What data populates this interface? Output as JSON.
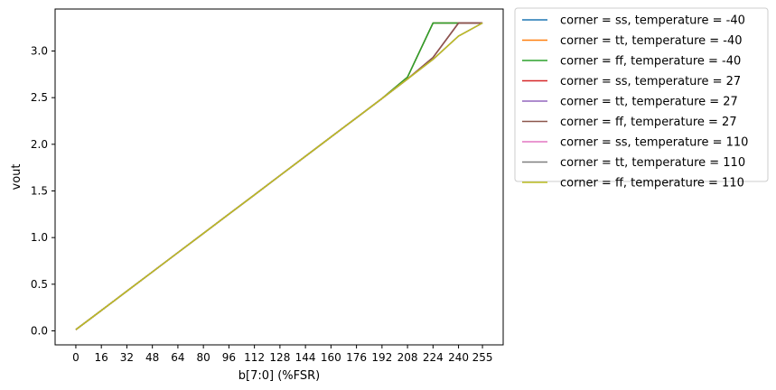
{
  "chart_data": {
    "type": "line",
    "xlabel": "b[7:0] (%FSR)",
    "ylabel": "vout",
    "x": [
      0,
      16,
      32,
      48,
      64,
      80,
      96,
      112,
      128,
      144,
      160,
      176,
      192,
      208,
      224,
      240,
      255
    ],
    "xticks": [
      "0",
      "16",
      "32",
      "48",
      "64",
      "80",
      "96",
      "112",
      "128",
      "144",
      "160",
      "176",
      "192",
      "208",
      "224",
      "240",
      "255"
    ],
    "xlim": [
      -13,
      268
    ],
    "ylim": [
      -0.15,
      3.45
    ],
    "yticks": [
      "0.0",
      "0.5",
      "1.0",
      "1.5",
      "2.0",
      "2.5",
      "3.0"
    ],
    "grid": false,
    "legend_placement": "outside-upper-right",
    "series": [
      {
        "name": "corner = ss, temperature = -40",
        "color": "#1f77b4",
        "values": [
          0.013,
          0.219,
          0.426,
          0.632,
          0.839,
          1.045,
          1.252,
          1.458,
          1.665,
          1.871,
          2.078,
          2.284,
          2.491,
          2.72,
          3.3,
          3.3,
          3.3
        ]
      },
      {
        "name": "corner = tt, temperature = -40",
        "color": "#ff7f0e",
        "values": [
          0.013,
          0.219,
          0.426,
          0.632,
          0.839,
          1.045,
          1.252,
          1.458,
          1.665,
          1.871,
          2.078,
          2.284,
          2.491,
          2.72,
          3.3,
          3.3,
          3.3
        ]
      },
      {
        "name": "corner = ff, temperature = -40",
        "color": "#2ca02c",
        "values": [
          0.013,
          0.219,
          0.426,
          0.632,
          0.839,
          1.045,
          1.252,
          1.458,
          1.665,
          1.871,
          2.078,
          2.284,
          2.491,
          2.72,
          3.3,
          3.3,
          3.3
        ]
      },
      {
        "name": "corner = ss, temperature = 27",
        "color": "#d62728",
        "values": [
          0.013,
          0.219,
          0.426,
          0.632,
          0.839,
          1.045,
          1.252,
          1.458,
          1.665,
          1.871,
          2.078,
          2.284,
          2.491,
          2.7,
          2.93,
          3.3,
          3.3
        ]
      },
      {
        "name": "corner = tt, temperature = 27",
        "color": "#9467bd",
        "values": [
          0.013,
          0.219,
          0.426,
          0.632,
          0.839,
          1.045,
          1.252,
          1.458,
          1.665,
          1.871,
          2.078,
          2.284,
          2.491,
          2.7,
          2.93,
          3.3,
          3.3
        ]
      },
      {
        "name": "corner = ff, temperature = 27",
        "color": "#8c564b",
        "values": [
          0.013,
          0.219,
          0.426,
          0.632,
          0.839,
          1.045,
          1.252,
          1.458,
          1.665,
          1.871,
          2.078,
          2.284,
          2.491,
          2.7,
          2.93,
          3.3,
          3.3
        ]
      },
      {
        "name": "corner = ss, temperature = 110",
        "color": "#e377c2",
        "values": [
          0.013,
          0.219,
          0.426,
          0.632,
          0.839,
          1.045,
          1.252,
          1.458,
          1.665,
          1.871,
          2.078,
          2.284,
          2.491,
          2.7,
          2.91,
          3.16,
          3.3
        ]
      },
      {
        "name": "corner = tt, temperature = 110",
        "color": "#7f7f7f",
        "values": [
          0.013,
          0.219,
          0.426,
          0.632,
          0.839,
          1.045,
          1.252,
          1.458,
          1.665,
          1.871,
          2.078,
          2.284,
          2.491,
          2.7,
          2.91,
          3.16,
          3.3
        ]
      },
      {
        "name": "corner = ff, temperature = 110",
        "color": "#bcbd22",
        "values": [
          0.013,
          0.219,
          0.426,
          0.632,
          0.839,
          1.045,
          1.252,
          1.458,
          1.665,
          1.871,
          2.078,
          2.284,
          2.491,
          2.7,
          2.91,
          3.16,
          3.3
        ]
      }
    ]
  }
}
